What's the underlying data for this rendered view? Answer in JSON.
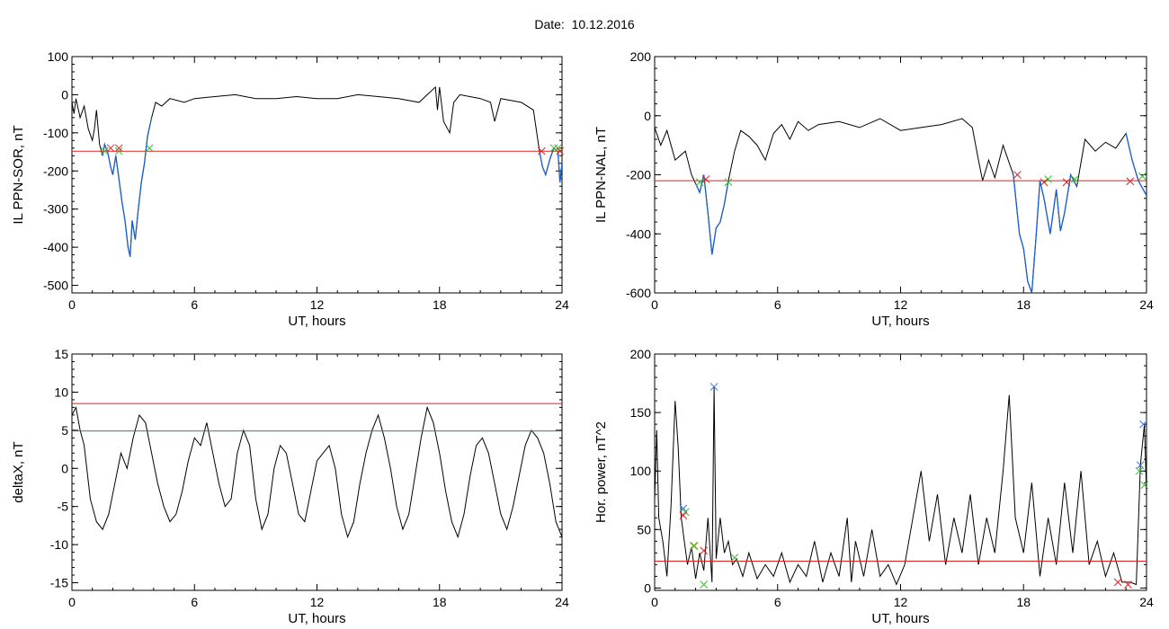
{
  "figure": {
    "title": "Date:  10.12.2016"
  },
  "chart_data": [
    {
      "type": "line",
      "xlabel": "UT, hours",
      "ylabel": "IL PPN-SOR, nT",
      "xlim": [
        0,
        24
      ],
      "ylim": [
        -520,
        100
      ],
      "xticks": [
        0,
        6,
        12,
        18,
        24
      ],
      "yticks": [
        -500,
        -400,
        -300,
        -200,
        -100,
        0,
        100
      ],
      "colors": {
        "series": "#000000",
        "highlight": "#1a5fcc",
        "threshold": "#dd2222",
        "start_marker": "#33bb33",
        "end_marker": "#dd2222"
      },
      "threshold": -148,
      "series": [
        {
          "x": [
            0,
            0.1,
            0.2,
            0.4,
            0.6,
            0.8,
            1.0,
            1.1,
            1.2,
            1.35,
            1.5,
            1.6,
            1.75,
            1.9,
            2.0,
            2.15,
            2.3,
            2.45,
            2.6,
            2.75,
            2.85,
            2.95,
            3.1,
            3.25,
            3.4,
            3.55,
            3.7,
            3.9,
            4.1,
            4.4,
            4.8,
            5.5,
            6,
            7,
            8,
            9,
            10,
            11,
            12,
            13,
            14,
            15,
            16,
            17,
            17.8,
            17.9,
            18.0,
            18.2,
            18.5,
            18.7,
            19,
            20,
            20.5,
            20.7,
            21,
            22,
            22.6,
            22.9,
            23.05,
            23.2,
            23.4,
            23.6,
            23.8,
            23.9,
            24
          ],
          "y": [
            -20,
            -50,
            -10,
            -60,
            -30,
            -90,
            -120,
            -90,
            -40,
            -130,
            -160,
            -130,
            -150,
            -190,
            -210,
            -160,
            -220,
            -280,
            -330,
            -400,
            -425,
            -330,
            -380,
            -300,
            -230,
            -180,
            -110,
            -60,
            -20,
            -30,
            -10,
            -20,
            -10,
            -5,
            0,
            -10,
            -10,
            -5,
            -10,
            -10,
            0,
            -5,
            -10,
            -20,
            20,
            -40,
            20,
            -70,
            -100,
            -20,
            0,
            -10,
            -20,
            -70,
            -10,
            -20,
            -40,
            -150,
            -190,
            -210,
            -170,
            -140,
            -150,
            -230,
            -180
          ]
        }
      ],
      "highlight_ranges": [
        [
          1.4,
          3.9
        ],
        [
          22.9,
          24
        ]
      ],
      "markers_start": [
        [
          1.6,
          -148
        ],
        [
          2.3,
          -148
        ],
        [
          3.8,
          -140
        ],
        [
          23.6,
          -140
        ],
        [
          23.8,
          -140
        ]
      ],
      "markers_end": [
        [
          1.9,
          -140
        ],
        [
          2.3,
          -140
        ],
        [
          23.0,
          -148
        ],
        [
          23.9,
          -148
        ]
      ]
    },
    {
      "type": "line",
      "xlabel": "UT, hours",
      "ylabel": "IL PPN-NAL, nT",
      "xlim": [
        0,
        24
      ],
      "ylim": [
        -600,
        200
      ],
      "xticks": [
        0,
        6,
        12,
        18,
        24
      ],
      "yticks": [
        -600,
        -400,
        -200,
        0,
        200
      ],
      "colors": {
        "series": "#000000",
        "highlight": "#1a5fcc",
        "threshold": "#dd2222",
        "start_marker": "#33bb33",
        "end_marker": "#dd2222"
      },
      "threshold": -220,
      "series": [
        {
          "x": [
            0,
            0.3,
            0.6,
            1.0,
            1.5,
            1.8,
            2.0,
            2.2,
            2.4,
            2.6,
            2.8,
            3.0,
            3.2,
            3.4,
            3.6,
            3.9,
            4.2,
            4.6,
            5.0,
            5.4,
            5.8,
            6.2,
            6.6,
            7.0,
            7.5,
            8,
            9,
            10,
            11,
            12,
            13,
            14,
            15,
            15.5,
            15.8,
            16.0,
            16.3,
            16.6,
            17.0,
            17.3,
            17.5,
            17.8,
            18.0,
            18.2,
            18.4,
            18.6,
            18.8,
            19.0,
            19.3,
            19.6,
            19.8,
            20.0,
            20.3,
            20.6,
            21.0,
            21.5,
            22,
            22.5,
            23.0,
            23.3,
            23.6,
            24
          ],
          "y": [
            -40,
            -100,
            -50,
            -150,
            -120,
            -200,
            -230,
            -260,
            -200,
            -330,
            -470,
            -380,
            -360,
            -300,
            -220,
            -120,
            -50,
            -70,
            -100,
            -150,
            -60,
            -30,
            -80,
            -20,
            -50,
            -30,
            -20,
            -40,
            -10,
            -50,
            -40,
            -30,
            -10,
            -40,
            -150,
            -220,
            -150,
            -210,
            -100,
            -160,
            -200,
            -400,
            -450,
            -560,
            -600,
            -420,
            -220,
            -280,
            -400,
            -250,
            -390,
            -330,
            -200,
            -240,
            -80,
            -120,
            -90,
            -110,
            -60,
            -150,
            -220,
            -270
          ]
        }
      ],
      "highlight_ranges": [
        [
          2.0,
          3.7
        ],
        [
          17.5,
          20.8
        ],
        [
          23.0,
          24
        ]
      ],
      "markers_start": [
        [
          2.2,
          -225
        ],
        [
          3.6,
          -225
        ],
        [
          19.2,
          -215
        ],
        [
          20.5,
          -215
        ],
        [
          23.8,
          -205
        ]
      ],
      "markers_end": [
        [
          2.5,
          -215
        ],
        [
          17.7,
          -200
        ],
        [
          19.0,
          -225
        ],
        [
          20.1,
          -225
        ],
        [
          23.2,
          -222
        ]
      ]
    },
    {
      "type": "line",
      "xlabel": "UT, hours",
      "ylabel": "deltaX, nT",
      "xlim": [
        0,
        24
      ],
      "ylim": [
        -16,
        15
      ],
      "xticks": [
        0,
        6,
        12,
        18,
        24
      ],
      "yticks": [
        -15,
        -10,
        -5,
        0,
        5,
        10,
        15
      ],
      "colors": {
        "series": "#000000",
        "upper_line": "#dd2222",
        "lower_line": "#1a8888"
      },
      "threshold_upper": 8.5,
      "threshold_lower": 4.9,
      "series": [
        {
          "x": [
            0,
            0.2,
            0.4,
            0.6,
            0.9,
            1.2,
            1.5,
            1.8,
            2.1,
            2.4,
            2.7,
            3.0,
            3.3,
            3.6,
            3.9,
            4.2,
            4.5,
            4.8,
            5.1,
            5.4,
            5.7,
            6.0,
            6.3,
            6.6,
            6.9,
            7.2,
            7.5,
            7.8,
            8.1,
            8.4,
            8.7,
            9.0,
            9.3,
            9.6,
            9.9,
            10.2,
            10.5,
            10.8,
            11.1,
            11.4,
            11.7,
            12.0,
            12.3,
            12.6,
            12.9,
            13.2,
            13.5,
            13.8,
            14.1,
            14.4,
            14.7,
            15.0,
            15.3,
            15.6,
            15.9,
            16.2,
            16.5,
            16.8,
            17.1,
            17.4,
            17.7,
            18.0,
            18.3,
            18.6,
            18.9,
            19.2,
            19.5,
            19.8,
            20.1,
            20.4,
            20.7,
            21.0,
            21.3,
            21.6,
            21.9,
            22.2,
            22.5,
            22.8,
            23.1,
            23.4,
            23.7,
            24
          ],
          "y": [
            7,
            8,
            5,
            3,
            -4,
            -7,
            -8,
            -6,
            -2,
            2,
            0,
            4,
            7,
            6,
            2,
            -2,
            -5,
            -7,
            -6,
            -3,
            1,
            4,
            3,
            6,
            2,
            -2,
            -5,
            -4,
            2,
            5,
            3,
            -4,
            -8,
            -6,
            0,
            3,
            2,
            -2,
            -6,
            -7,
            -3,
            1,
            2,
            3,
            0,
            -6,
            -9,
            -7,
            -2,
            2,
            5,
            7,
            4,
            0,
            -5,
            -8,
            -6,
            -1,
            4,
            8,
            6,
            2,
            -3,
            -7,
            -9,
            -6,
            -1,
            3,
            4,
            2,
            -2,
            -6,
            -8,
            -5,
            -1,
            3,
            5,
            4,
            2,
            -2,
            -7,
            -9
          ]
        }
      ]
    },
    {
      "type": "line",
      "xlabel": "UT, hours",
      "ylabel": "Hor. power, nT^2",
      "xlim": [
        0,
        24
      ],
      "ylim": [
        -2,
        200
      ],
      "xticks": [
        0,
        6,
        12,
        18,
        24
      ],
      "yticks": [
        0,
        50,
        100,
        150,
        200
      ],
      "colors": {
        "series": "#000000",
        "threshold": "#dd2222",
        "marker_blue": "#3377dd",
        "marker_green": "#33bb33",
        "marker_red": "#dd2222",
        "marker_olive": "#cc9922"
      },
      "threshold": 23,
      "series": [
        {
          "x": [
            0,
            0.1,
            0.2,
            0.4,
            0.6,
            0.8,
            1.0,
            1.15,
            1.3,
            1.45,
            1.6,
            1.8,
            2.0,
            2.2,
            2.4,
            2.6,
            2.8,
            2.9,
            3.0,
            3.2,
            3.4,
            3.6,
            3.8,
            4.0,
            4.3,
            4.6,
            5.0,
            5.4,
            5.8,
            6.2,
            6.6,
            7.0,
            7.4,
            7.8,
            8.2,
            8.6,
            9.0,
            9.4,
            9.6,
            9.8,
            10.2,
            10.6,
            11.0,
            11.4,
            11.8,
            12.2,
            12.6,
            13.0,
            13.4,
            13.8,
            14.2,
            14.6,
            15.0,
            15.4,
            15.8,
            16.2,
            16.6,
            17.0,
            17.3,
            17.6,
            18.0,
            18.4,
            18.8,
            19.2,
            19.6,
            20.0,
            20.4,
            20.8,
            21.2,
            21.6,
            22.0,
            22.4,
            22.8,
            23.2,
            23.5,
            23.7,
            23.9,
            24
          ],
          "y": [
            75,
            135,
            60,
            40,
            10,
            70,
            160,
            120,
            60,
            40,
            20,
            35,
            8,
            30,
            15,
            60,
            5,
            172,
            25,
            60,
            30,
            40,
            20,
            25,
            10,
            30,
            8,
            20,
            10,
            30,
            5,
            20,
            10,
            40,
            5,
            30,
            10,
            60,
            5,
            40,
            10,
            50,
            10,
            20,
            3,
            20,
            60,
            100,
            40,
            80,
            20,
            60,
            30,
            80,
            20,
            60,
            30,
            100,
            165,
            60,
            30,
            90,
            10,
            60,
            20,
            90,
            30,
            100,
            20,
            40,
            10,
            30,
            5,
            5,
            3,
            105,
            140,
            80
          ]
        }
      ],
      "markers_blue": [
        [
          1.4,
          68
        ],
        [
          2.9,
          172
        ],
        [
          23.7,
          105
        ],
        [
          23.85,
          140
        ]
      ],
      "markers_green": [
        [
          1.5,
          65
        ],
        [
          1.9,
          36
        ],
        [
          2.4,
          3
        ],
        [
          3.9,
          26
        ],
        [
          23.65,
          100
        ],
        [
          23.9,
          88
        ]
      ],
      "markers_red": [
        [
          1.4,
          62
        ],
        [
          2.4,
          32
        ],
        [
          22.6,
          5
        ],
        [
          23.1,
          3
        ]
      ],
      "markers_olive": [
        [
          1.95,
          36
        ]
      ]
    }
  ]
}
